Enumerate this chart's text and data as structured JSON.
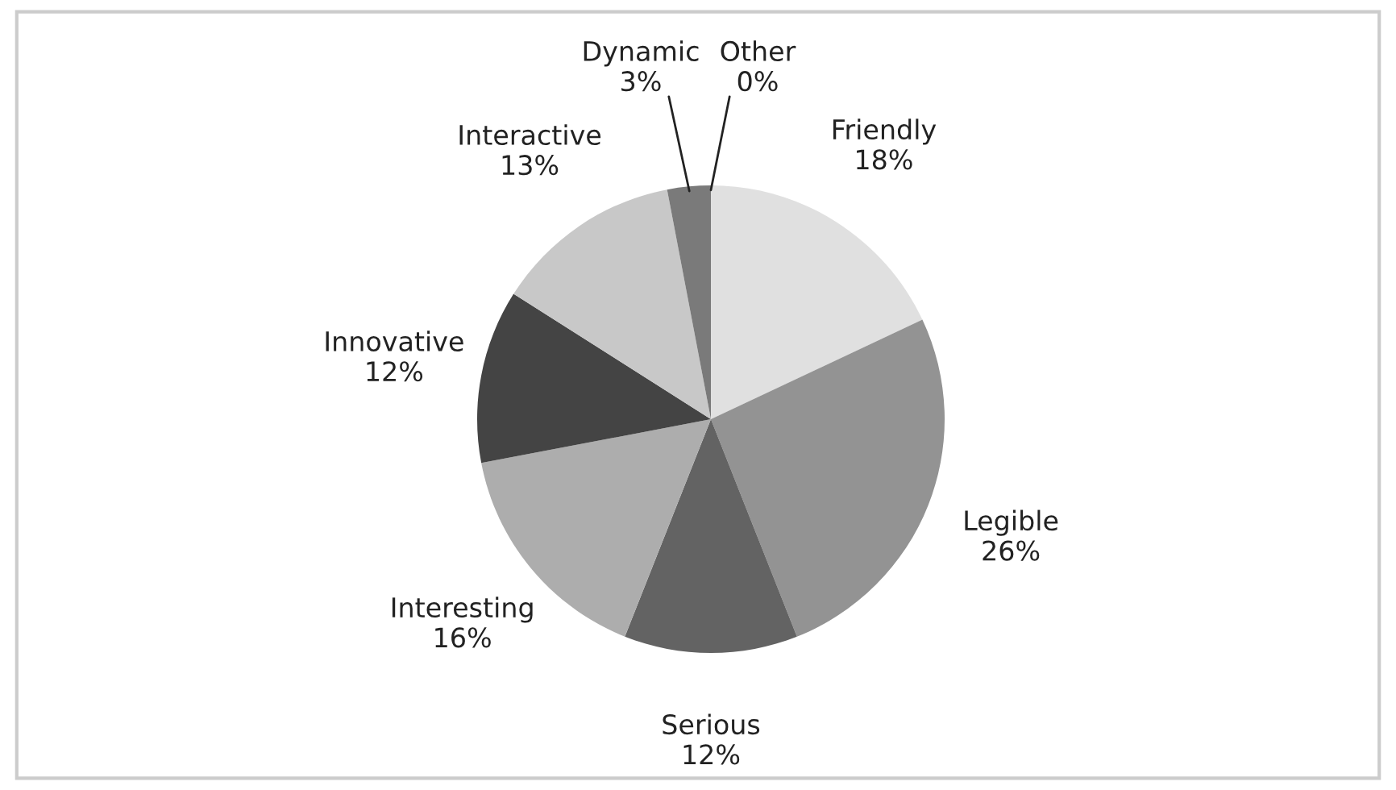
{
  "chart_data": {
    "type": "pie",
    "categories": [
      "Friendly",
      "Legible",
      "Serious",
      "Interesting",
      "Innovative",
      "Interactive",
      "Dynamic",
      "Other"
    ],
    "values": [
      18,
      26,
      12,
      16,
      12,
      13,
      3,
      0
    ],
    "colors": [
      "#e0e0e0",
      "#939393",
      "#636363",
      "#adadad",
      "#444444",
      "#c8c8c8",
      "#7a7a7a",
      "#ffffff"
    ],
    "value_labels": [
      "18%",
      "26%",
      "12%",
      "16%",
      "12%",
      "13%",
      "3%",
      "0%"
    ],
    "legend": false
  }
}
